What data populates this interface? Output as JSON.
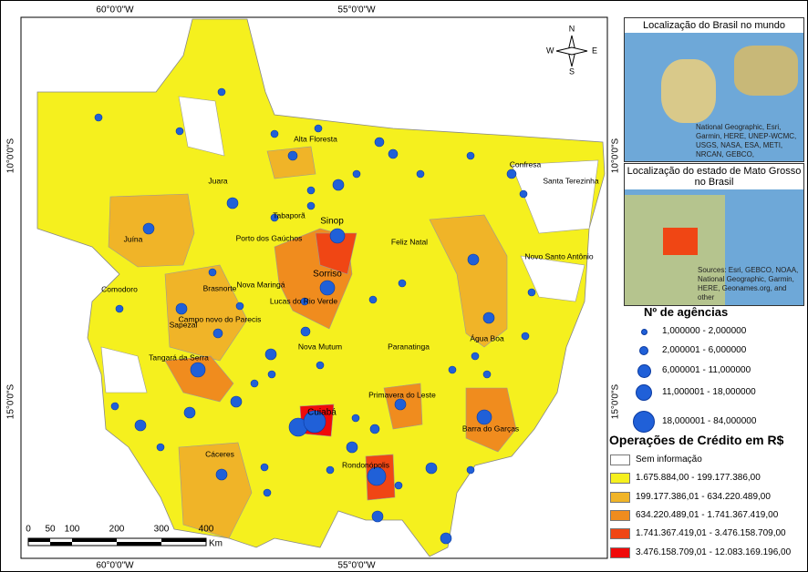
{
  "map": {
    "grid_labels": {
      "top": [
        "60°0'0\"W",
        "55°0'0\"W"
      ],
      "bottom": [
        "60°0'0\"W",
        "55°0'0\"W"
      ],
      "left": [
        "10°0'0\"S",
        "15°0'0\"S"
      ],
      "right": [
        "10°0'0\"S",
        "15°0'0\"S"
      ]
    },
    "compass": {
      "n": "N",
      "s": "S",
      "e": "E",
      "w": "W"
    },
    "places": [
      "Alta Floresta",
      "Confresa",
      "Santa Terezinha",
      "Juara",
      "Juína",
      "Tabaporã",
      "Sinop",
      "Porto dos Gaúchos",
      "Feliz Natal",
      "Novo Santo Antônio",
      "Comodoro",
      "Brasnorte",
      "Nova Maringá",
      "Lucas do Rio Verde",
      "Sorriso",
      "Sapezal",
      "Campo novo do Parecis",
      "Nova Mutum",
      "Paranatinga",
      "Água Boa",
      "Tangará da Serra",
      "Primavera do Leste",
      "Cuiabá",
      "Barra do Garças",
      "Cáceres",
      "Rondonópolis"
    ],
    "scale_bar": {
      "ticks": [
        "0",
        "50",
        "100",
        "200",
        "300",
        "400"
      ],
      "unit": "Km"
    }
  },
  "insets": [
    {
      "title": "Localização do Brasil no mundo",
      "attribution": "National Geographic, Esri, Garmin, HERE, UNEP-WCMC, USGS, NASA, ESA, METI, NRCAN, GEBCO,"
    },
    {
      "title": "Localização do estado de Mato Grosso no Brasil",
      "attribution": "Sources: Esri, GEBCO, NOAA, National Geographic, Garmin, HERE, Geonames.org, and other"
    }
  ],
  "legend": {
    "agencies": {
      "title": "Nº de agências",
      "classes": [
        "1,000000 - 2,000000",
        "2,000001 - 6,000000",
        "6,000001 - 11,000000",
        "11,000001 - 18,000000",
        "18,000001 - 84,000000"
      ]
    },
    "credit": {
      "title": "Operações de Crédito em R$",
      "classes": [
        {
          "label": "Sem informação",
          "color": "#ffffff"
        },
        {
          "label": "1.675.884,00 - 199.177.386,00",
          "color": "#f5f01e"
        },
        {
          "label": "199.177.386,01 - 634.220.489,00",
          "color": "#f0b428"
        },
        {
          "label": "634.220.489,01 - 1.741.367.419,00",
          "color": "#f08c1e"
        },
        {
          "label": "1.741.367.419,01 - 3.476.158.709,00",
          "color": "#f04614"
        },
        {
          "label": "3.476.158.709,01 - 12.083.169.196,00",
          "color": "#f00a0a"
        }
      ]
    }
  }
}
